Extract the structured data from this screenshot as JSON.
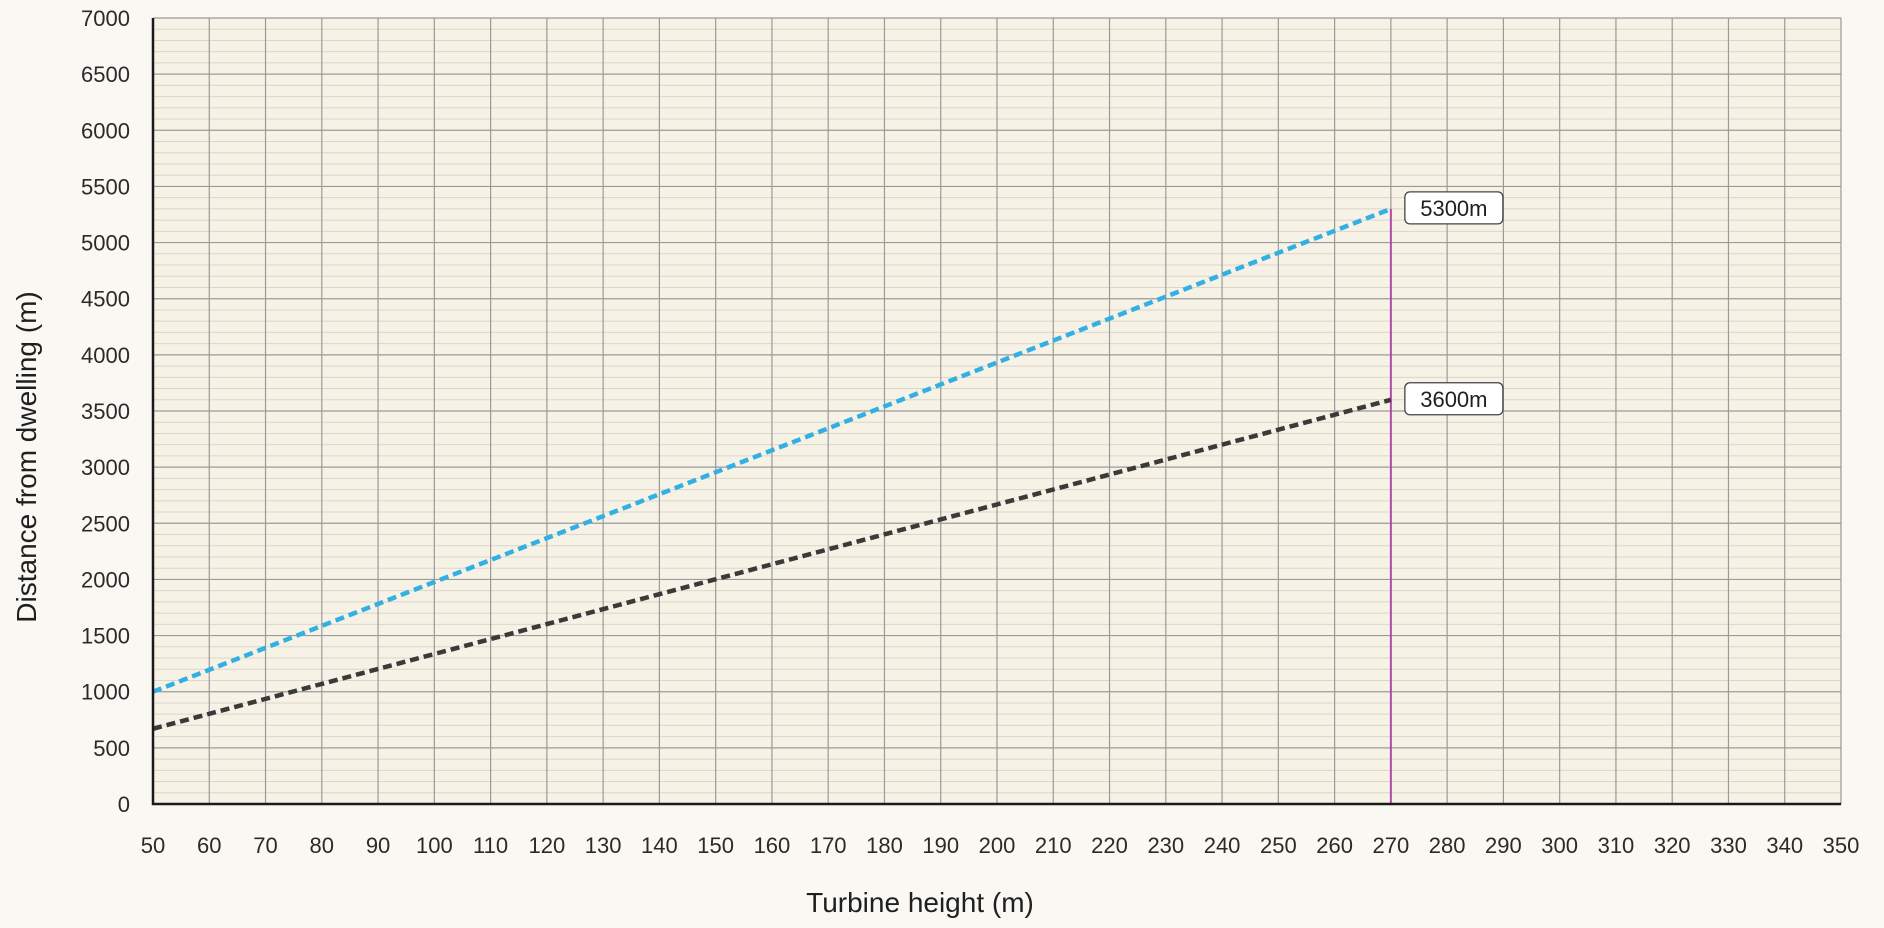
{
  "chart_data": {
    "type": "line",
    "xlabel": "Turbine height (m)",
    "ylabel": "Distance from dwelling (m)",
    "xlim": [
      50,
      350
    ],
    "ylim": [
      0,
      7000
    ],
    "x_ticks": [
      50,
      60,
      70,
      80,
      90,
      100,
      110,
      120,
      130,
      140,
      150,
      160,
      170,
      180,
      190,
      200,
      210,
      220,
      230,
      240,
      250,
      260,
      270,
      280,
      290,
      300,
      310,
      320,
      330,
      340,
      350
    ],
    "y_ticks": [
      0,
      500,
      1000,
      1500,
      2000,
      2500,
      3000,
      3500,
      4000,
      4500,
      5000,
      5500,
      6000,
      6500,
      7000
    ],
    "y_minor_step": 100,
    "grid": true,
    "series": [
      {
        "color": "#33b0e3",
        "style": "dashed",
        "x": [
          50,
          270
        ],
        "y": [
          1000,
          5300
        ]
      },
      {
        "color": "#3a3a3a",
        "style": "dashed",
        "x": [
          50,
          270
        ],
        "y": [
          670,
          3600
        ]
      }
    ],
    "reference_lines": [
      {
        "orientation": "vertical",
        "x": 270,
        "color": "#b04aa8"
      }
    ],
    "annotations": [
      {
        "text": "5300m",
        "x": 270,
        "y": 5300
      },
      {
        "text": "3600m",
        "x": 270,
        "y": 3600
      }
    ]
  }
}
